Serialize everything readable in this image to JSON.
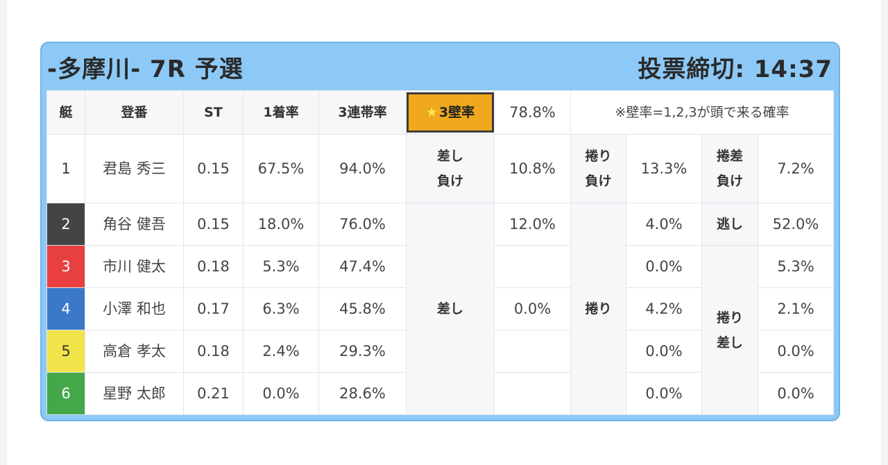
{
  "race": {
    "title": "-多摩川- 7R 予選",
    "deadline": "投票締切: 14:37"
  },
  "headers": {
    "boat": "艇",
    "reg": "登番",
    "st": "ST",
    "win1": "1着率",
    "ren3": "3連帯率",
    "wall_label": "3壁率",
    "wall_value": "78.8%",
    "wall_note": "※壁率=1,2,3が頭で来る確率"
  },
  "tags": {
    "sashi_make": "差し負け",
    "makuri_make": "捲り負け",
    "makurisashi_make": "捲差負け",
    "sashi": "差し",
    "makuri": "捲り",
    "nige": "逃し",
    "makurisashi": "捲り差し"
  },
  "colors": {
    "boat_1": "#ffffff",
    "boat_2": "#444444",
    "boat_3": "#e84040",
    "boat_4": "#3c78c8",
    "boat_5": "#f0e44a",
    "boat_6": "#44a84a",
    "star_bg": "#f0a81e"
  },
  "rows": [
    {
      "boat": "1",
      "name": "君島 秀三",
      "st": "0.15",
      "win1": "67.5%",
      "ren3": "94.0%"
    },
    {
      "boat": "2",
      "name": "角谷 健吾",
      "st": "0.15",
      "win1": "18.0%",
      "ren3": "76.0%"
    },
    {
      "boat": "3",
      "name": "市川 健太",
      "st": "0.18",
      "win1": "5.3%",
      "ren3": "47.4%"
    },
    {
      "boat": "4",
      "name": "小澤 和也",
      "st": "0.17",
      "win1": "6.3%",
      "ren3": "45.8%"
    },
    {
      "boat": "5",
      "name": "高倉 孝太",
      "st": "0.18",
      "win1": "2.4%",
      "ren3": "29.3%"
    },
    {
      "boat": "6",
      "name": "星野 太郎",
      "st": "0.21",
      "win1": "0.0%",
      "ren3": "28.6%"
    }
  ],
  "vals": {
    "sashi_make": "10.8%",
    "makuri_make": "13.3%",
    "makurisashi_make": "7.2%",
    "sashi_2": "12.0%",
    "sashi_4": "0.0%",
    "makuri_2": "4.0%",
    "makuri_3": "0.0%",
    "makuri_4": "4.2%",
    "makuri_5": "0.0%",
    "makuri_6": "0.0%",
    "nige_2": "52.0%",
    "ms_3": "5.3%",
    "ms_4": "2.1%",
    "ms_5": "0.0%",
    "ms_6": "0.0%"
  }
}
